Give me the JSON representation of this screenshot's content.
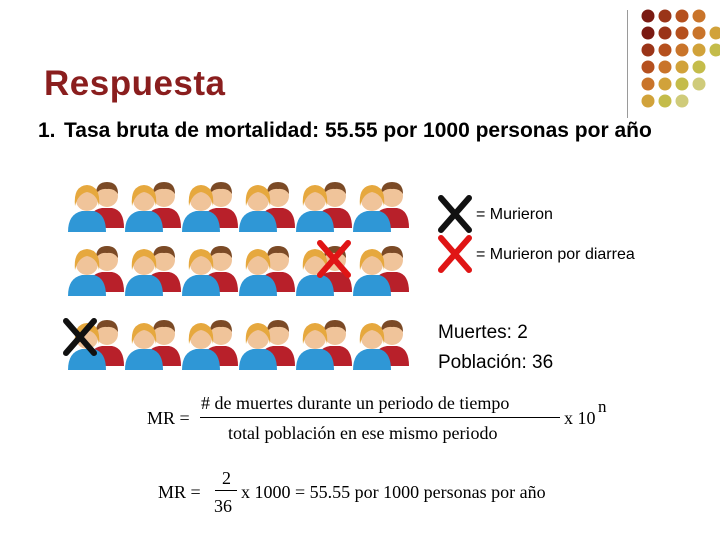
{
  "slide": {
    "title": "Respuesta",
    "point_number": "1.",
    "point_text": "Tasa bruta de mortalidad: 55.55 por 1000 personas por año"
  },
  "legend": {
    "died": "= Murieron",
    "died_diarrhea": "= Murieron por diarrea"
  },
  "stats": {
    "deaths": "Muertes: 2",
    "population": "Población: 36"
  },
  "formula_general": {
    "lhs": "MR =",
    "numerator": "# de muertes durante un periodo de tiempo",
    "denominator": "total población en ese mismo periodo",
    "multiplier": "x 10",
    "exponent": "n"
  },
  "formula_applied": {
    "lhs": "MR =",
    "numerator": "2",
    "denominator": "36",
    "rest": "x 1000 = 55.55 por 1000 personas por año"
  },
  "colors": {
    "title": "#8a1e1e",
    "cross_black": "#111111",
    "cross_red": "#e01515",
    "person_blue": "#2f97d6",
    "person_red": "#b8202a",
    "skin": "#f0c49a",
    "hair_blonde": "#e6a83e",
    "hair_brown": "#7b4a26"
  }
}
